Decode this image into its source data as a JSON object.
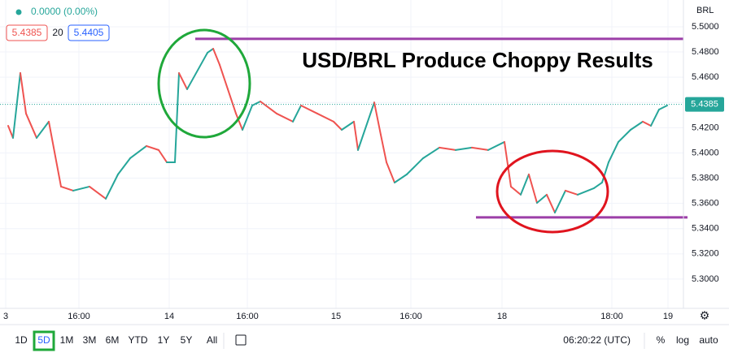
{
  "chart_data": {
    "type": "line",
    "title": "USD/BRL Produce Choppy Results",
    "change": "0.0000 (0.00%)",
    "bid": "5.4385",
    "spread": "20",
    "ask": "5.4405",
    "currency": "BRL",
    "last_price": {
      "value": 5.4385,
      "label": "5.4385"
    },
    "resistance": 5.4904,
    "support": 5.3489,
    "level_color": "#9c3fa8",
    "up_color": "#26a69a",
    "down_color": "#ef5350",
    "x": [
      2.5,
      4,
      6.25,
      8,
      11.25,
      15,
      18.75,
      22.5,
      27.5,
      32.5,
      36.25,
      40,
      45,
      48.75,
      51.25,
      53.75,
      55,
      57.5,
      63.75,
      65.5,
      67.5,
      70,
      72.5,
      74.5,
      77.5,
      80,
      85,
      90,
      92.5,
      97.5,
      102.5,
      105,
      108.75,
      110,
      115,
      117,
      118.75,
      121.25,
      125,
      130,
      135,
      140,
      145,
      150,
      155,
      157,
      160,
      162.5,
      165,
      168,
      170.5,
      173.75,
      177.5,
      182.5,
      185,
      187,
      190,
      193.75,
      197.5,
      200,
      202.5,
      205
    ],
    "values": [
      5.4215,
      5.4119,
      5.4633,
      5.4312,
      5.4119,
      5.4248,
      5.3733,
      5.3701,
      5.3733,
      5.3637,
      5.383,
      5.3958,
      5.4055,
      5.4023,
      5.3926,
      5.3926,
      5.4633,
      5.4505,
      5.4794,
      5.4826,
      5.4698,
      5.4505,
      5.4312,
      5.4183,
      5.4376,
      5.4408,
      5.4312,
      5.4248,
      5.4376,
      5.4312,
      5.4248,
      5.4183,
      5.4248,
      5.4023,
      5.44,
      5.4144,
      5.3926,
      5.3765,
      5.383,
      5.3958,
      5.4042,
      5.4023,
      5.4042,
      5.4023,
      5.4087,
      5.3733,
      5.3669,
      5.383,
      5.3604,
      5.3669,
      5.3527,
      5.3701,
      5.3669,
      5.372,
      5.3765,
      5.3926,
      5.4087,
      5.4183,
      5.4248,
      5.4215,
      5.4344,
      5.4376
    ],
    "xlim": [
      0,
      210
    ],
    "xticks": [
      {
        "value": 1.75,
        "label": "3"
      },
      {
        "value": 24.25,
        "label": "16:00"
      },
      {
        "value": 52,
        "label": "14"
      },
      {
        "value": 76,
        "label": "16:00"
      },
      {
        "value": 103.25,
        "label": "15"
      },
      {
        "value": 126.25,
        "label": "16:00"
      },
      {
        "value": 154.25,
        "label": "18"
      },
      {
        "value": 188,
        "label": "18:00"
      },
      {
        "value": 205.25,
        "label": "19"
      }
    ],
    "ylim": [
      5.2768,
      5.5212
    ],
    "yticks": [
      {
        "value": 5.5,
        "label": "5.5000"
      },
      {
        "value": 5.48,
        "label": "5.4800"
      },
      {
        "value": 5.46,
        "label": "5.4600"
      },
      {
        "value": 5.44,
        "label": "5.4400"
      },
      {
        "value": 5.42,
        "label": "5.4200"
      },
      {
        "value": 5.4,
        "label": "5.4000"
      },
      {
        "value": 5.38,
        "label": "5.3800"
      },
      {
        "value": 5.36,
        "label": "5.3600"
      },
      {
        "value": 5.34,
        "label": "5.3400"
      },
      {
        "value": 5.32,
        "label": "5.3200"
      },
      {
        "value": 5.3,
        "label": "5.3000"
      }
    ],
    "grid": true,
    "toolbar": {
      "ranges": [
        "1D",
        "5D",
        "1M",
        "3M",
        "6M",
        "YTD",
        "1Y",
        "5Y",
        "All"
      ],
      "active": "5D",
      "time": "06:20:22 (UTC)",
      "options": [
        "%",
        "log",
        "auto"
      ]
    }
  }
}
